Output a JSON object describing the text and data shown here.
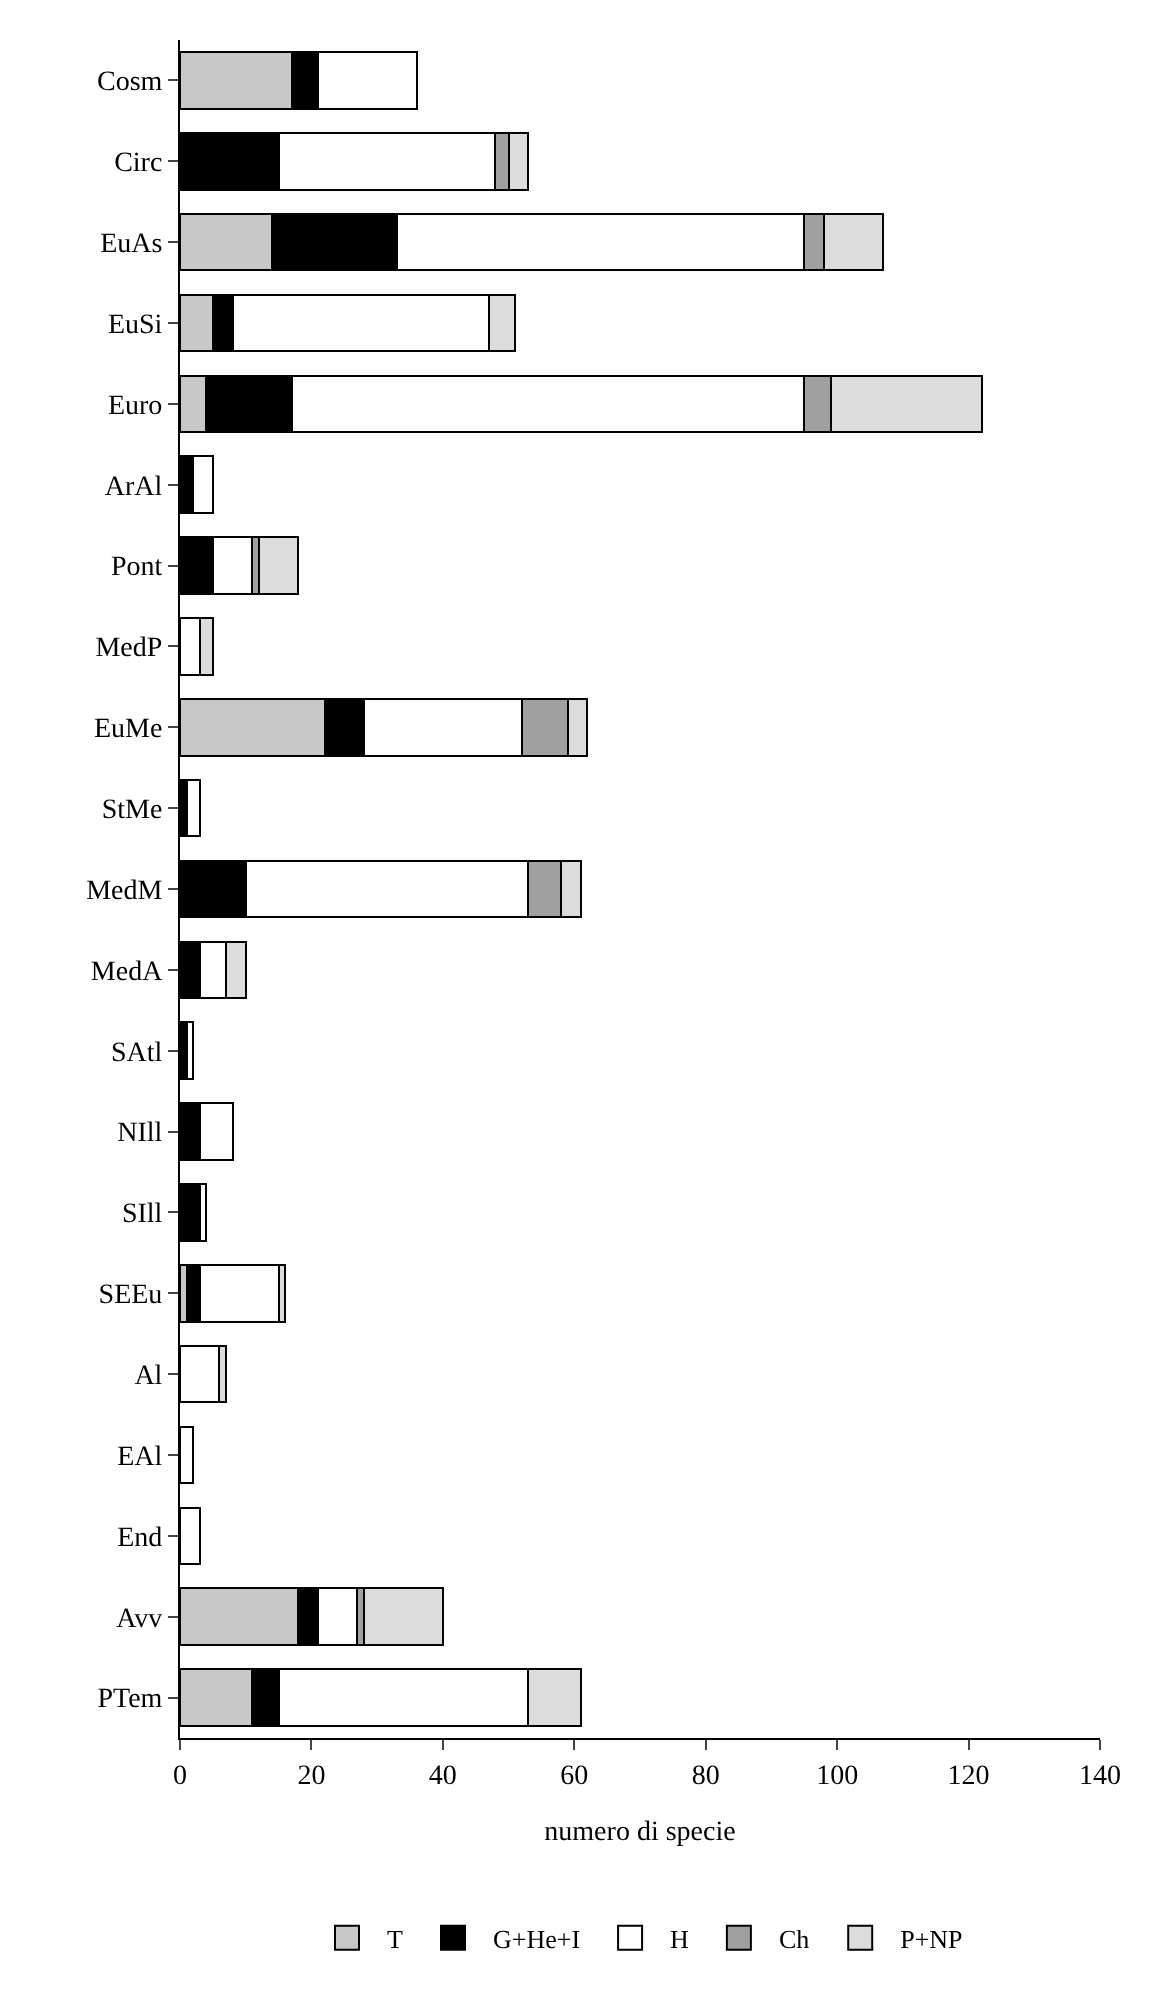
{
  "chart_data": {
    "type": "bar",
    "orientation": "horizontal",
    "stacked": true,
    "xlabel": "numero di specie",
    "categories": [
      "Cosm",
      "Circ",
      "EuAs",
      "EuSi",
      "Euro",
      "ArAl",
      "Pont",
      "MedP",
      "EuMe",
      "StMe",
      "MedM",
      "MedA",
      "SAtl",
      "NIll",
      "SIll",
      "SEEu",
      "Al",
      "EAl",
      "End",
      "Avv",
      "PTem"
    ],
    "series": [
      {
        "name": "T",
        "color": "#c8c8c8",
        "values": [
          17,
          null,
          14,
          5,
          4,
          null,
          null,
          null,
          22,
          null,
          null,
          null,
          null,
          null,
          null,
          1,
          null,
          null,
          null,
          18,
          11
        ]
      },
      {
        "name": "G+He+I",
        "color": "#000000",
        "values": [
          4,
          15,
          19,
          3,
          13,
          2,
          5,
          null,
          6,
          1,
          10,
          3,
          1,
          3,
          3,
          2,
          null,
          null,
          null,
          3,
          4
        ]
      },
      {
        "name": "H",
        "color": "#ffffff",
        "values": [
          15,
          33,
          62,
          39,
          78,
          3,
          6,
          3,
          24,
          2,
          43,
          4,
          1,
          5,
          1,
          12,
          6,
          2,
          3,
          6,
          38
        ]
      },
      {
        "name": "Ch",
        "color": "#a0a0a0",
        "values": [
          null,
          2,
          3,
          null,
          4,
          null,
          1,
          null,
          7,
          null,
          5,
          null,
          null,
          null,
          null,
          null,
          null,
          null,
          null,
          1,
          null
        ]
      },
      {
        "name": "P+NP",
        "color": "#dcdcdc",
        "values": [
          null,
          3,
          9,
          4,
          23,
          null,
          6,
          2,
          3,
          null,
          3,
          3,
          null,
          null,
          null,
          1,
          1,
          null,
          null,
          12,
          8
        ]
      }
    ],
    "xlim": [
      0,
      140
    ],
    "xticks": [
      0,
      20,
      40,
      60,
      80,
      100,
      120,
      140
    ],
    "legend": "bottom"
  }
}
